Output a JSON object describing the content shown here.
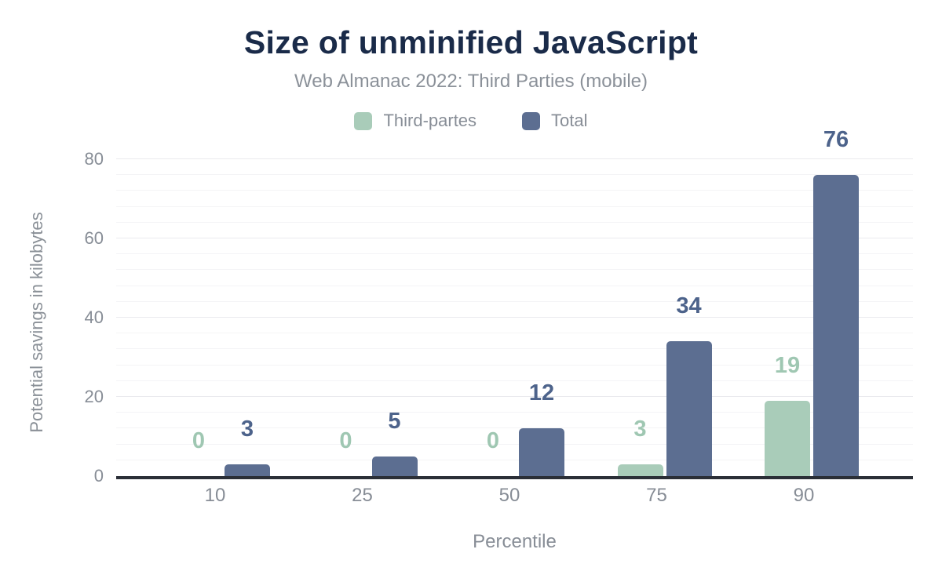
{
  "chart_data": {
    "type": "bar",
    "title": "Size of unminified JavaScript",
    "subtitle": "Web Almanac 2022: Third Parties (mobile)",
    "categories": [
      "10",
      "25",
      "50",
      "75",
      "90"
    ],
    "series": [
      {
        "name": "Third-partes",
        "values": [
          0,
          0,
          0,
          3,
          19
        ],
        "color": "#a9ccb9",
        "label_color": "#9fc7b2"
      },
      {
        "name": "Total",
        "values": [
          3,
          5,
          12,
          34,
          76
        ],
        "color": "#5c6e91",
        "label_color": "#4d638b"
      }
    ],
    "xlabel": "Percentile",
    "ylabel": "Potential savings in kilobytes",
    "ylim": [
      0,
      80
    ],
    "yticks": [
      0,
      20,
      40,
      60,
      80
    ],
    "grid": {
      "on": true,
      "minor_step": 4,
      "major_step": 20
    },
    "legend_position": "top",
    "bar_value_labels": true
  },
  "colors": {
    "title": "#1a2b49",
    "subtitle": "#8b9199",
    "axis_text": "#878d96",
    "axis_line": "#2b2f37",
    "grid_minor": "#f4f4f6",
    "grid_major": "#eaeaee",
    "background": "#ffffff"
  }
}
